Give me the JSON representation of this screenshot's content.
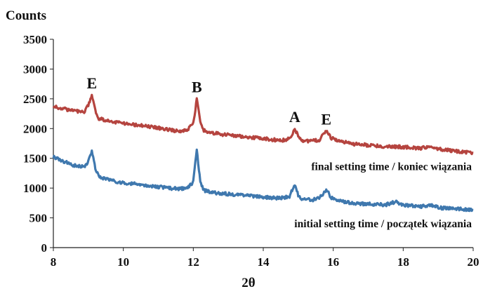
{
  "chart_data": {
    "type": "line",
    "ylabel": "Counts",
    "xlabel": "2θ",
    "xlim": [
      8,
      20
    ],
    "ylim": [
      0,
      3500
    ],
    "xticks": [
      8,
      10,
      12,
      14,
      16,
      18,
      20
    ],
    "yticks": [
      0,
      500,
      1000,
      1500,
      2000,
      2500,
      3000,
      3500
    ],
    "grid": false,
    "series": [
      {
        "color": "#b5443f",
        "points": [
          [
            8.0,
            2370
          ],
          [
            8.3,
            2330
          ],
          [
            8.6,
            2300
          ],
          [
            8.9,
            2280
          ],
          [
            9.0,
            2400
          ],
          [
            9.1,
            2560
          ],
          [
            9.2,
            2300
          ],
          [
            9.3,
            2170
          ],
          [
            9.6,
            2120
          ],
          [
            10.0,
            2090
          ],
          [
            10.5,
            2050
          ],
          [
            11.0,
            2010
          ],
          [
            11.5,
            1960
          ],
          [
            11.8,
            1960
          ],
          [
            12.0,
            2080
          ],
          [
            12.1,
            2490
          ],
          [
            12.2,
            2100
          ],
          [
            12.3,
            1970
          ],
          [
            12.6,
            1920
          ],
          [
            13.0,
            1890
          ],
          [
            13.5,
            1860
          ],
          [
            14.0,
            1830
          ],
          [
            14.5,
            1800
          ],
          [
            14.75,
            1830
          ],
          [
            14.9,
            1990
          ],
          [
            15.0,
            1880
          ],
          [
            15.1,
            1790
          ],
          [
            15.4,
            1790
          ],
          [
            15.6,
            1810
          ],
          [
            15.8,
            1950
          ],
          [
            15.95,
            1840
          ],
          [
            16.2,
            1790
          ],
          [
            16.6,
            1740
          ],
          [
            17.0,
            1720
          ],
          [
            17.5,
            1700
          ],
          [
            18.0,
            1690
          ],
          [
            18.5,
            1670
          ],
          [
            18.8,
            1710
          ],
          [
            19.0,
            1660
          ],
          [
            19.5,
            1620
          ],
          [
            20.0,
            1590
          ]
        ]
      },
      {
        "color": "#3f78ae",
        "points": [
          [
            8.0,
            1520
          ],
          [
            8.3,
            1450
          ],
          [
            8.6,
            1380
          ],
          [
            8.9,
            1350
          ],
          [
            9.0,
            1450
          ],
          [
            9.1,
            1620
          ],
          [
            9.2,
            1330
          ],
          [
            9.3,
            1200
          ],
          [
            9.6,
            1130
          ],
          [
            10.0,
            1090
          ],
          [
            10.5,
            1060
          ],
          [
            11.0,
            1020
          ],
          [
            11.5,
            990
          ],
          [
            11.8,
            990
          ],
          [
            12.0,
            1100
          ],
          [
            12.1,
            1640
          ],
          [
            12.2,
            1100
          ],
          [
            12.3,
            960
          ],
          [
            12.6,
            920
          ],
          [
            13.0,
            900
          ],
          [
            13.5,
            870
          ],
          [
            14.0,
            850
          ],
          [
            14.5,
            830
          ],
          [
            14.75,
            860
          ],
          [
            14.9,
            1070
          ],
          [
            15.0,
            880
          ],
          [
            15.1,
            810
          ],
          [
            15.4,
            800
          ],
          [
            15.6,
            830
          ],
          [
            15.8,
            970
          ],
          [
            15.95,
            840
          ],
          [
            16.2,
            780
          ],
          [
            16.6,
            740
          ],
          [
            17.0,
            730
          ],
          [
            17.5,
            720
          ],
          [
            17.8,
            770
          ],
          [
            18.0,
            720
          ],
          [
            18.5,
            690
          ],
          [
            18.8,
            720
          ],
          [
            19.0,
            670
          ],
          [
            19.5,
            650
          ],
          [
            20.0,
            630
          ]
        ]
      }
    ],
    "peak_labels": [
      {
        "text": "E",
        "x": 9.1,
        "y": 2560
      },
      {
        "text": "B",
        "x": 12.1,
        "y": 2490
      },
      {
        "text": "A",
        "x": 14.9,
        "y": 1990
      },
      {
        "text": "E",
        "x": 15.8,
        "y": 1950
      }
    ],
    "annotations": [
      {
        "text": "final setting time / koniec wiązania",
        "x": 20,
        "y": 1300
      },
      {
        "text": "initial setting time / początek wiązania",
        "x": 20,
        "y": 340
      }
    ]
  }
}
